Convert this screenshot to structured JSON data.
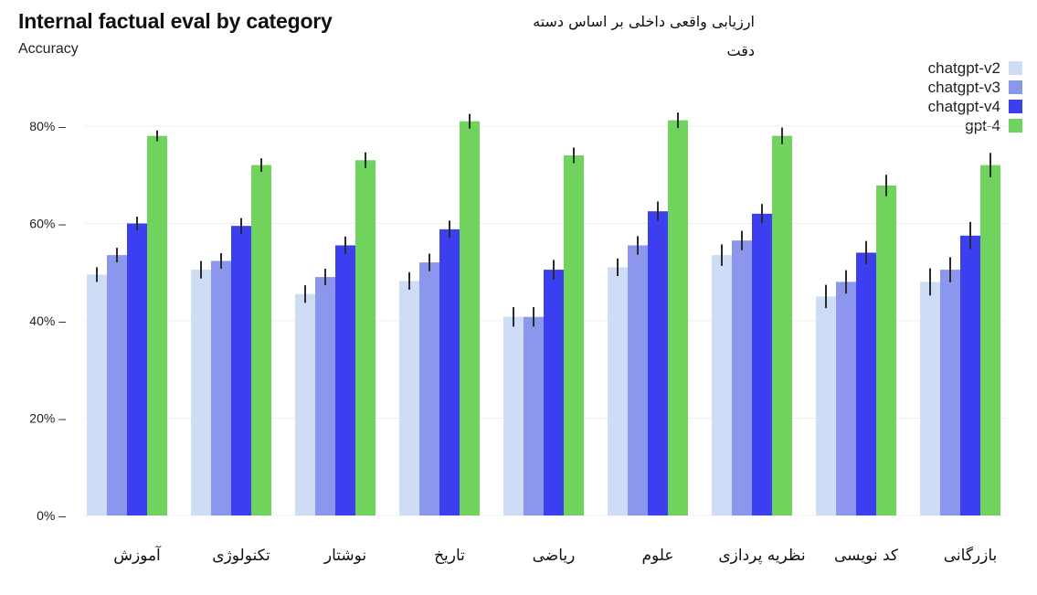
{
  "title_en": "Internal factual eval by category",
  "ylabel_en": "Accuracy",
  "title_fa": "ارزیابی واقعی داخلی بر اساس دسته",
  "ylabel_fa": "دقت",
  "colors": {
    "chatgpt-v2": "#cfdcf5",
    "chatgpt-v3": "#8a97ec",
    "chatgpt-v4": "#3c3ff0",
    "gpt-4": "#6fd35e",
    "error_bar": "#2b2b2b",
    "grid": "#efefef"
  },
  "legend": [
    {
      "name": "chatgpt-v2",
      "color": "#cfdcf5"
    },
    {
      "name": "chatgpt-v3",
      "color": "#8a97ec"
    },
    {
      "name": "chatgpt-v4",
      "color": "#3c3ff0"
    },
    {
      "name": "gpt-4",
      "color": "#6fd35e"
    }
  ],
  "chart_data": {
    "type": "bar",
    "title": "Internal factual eval by category",
    "ylabel": "Accuracy",
    "xlabel": "",
    "ylim": [
      0,
      100
    ],
    "yticks": [
      0,
      20,
      40,
      60,
      80
    ],
    "ytick_labels": [
      "0% –",
      "20% –",
      "40% –",
      "60% –",
      "80% –"
    ],
    "grid": true,
    "legend_position": "top-right",
    "categories": [
      "آموزش",
      "تکنولوژی",
      "نوشتار",
      "تاریخ",
      "ریاضی",
      "علوم",
      "نظریه پردازی",
      "کد نویسی",
      "بازرگانی"
    ],
    "series": [
      {
        "name": "chatgpt-v2",
        "values": [
          49.5,
          50.5,
          45.5,
          48.2,
          40.8,
          51.0,
          53.5,
          45.0,
          48.0
        ],
        "errors": [
          1.5,
          1.8,
          1.8,
          1.8,
          2.0,
          1.8,
          2.2,
          2.4,
          2.8
        ]
      },
      {
        "name": "chatgpt-v3",
        "values": [
          53.5,
          52.3,
          49.0,
          52.0,
          40.8,
          55.5,
          56.5,
          48.0,
          50.5
        ],
        "errors": [
          1.5,
          1.6,
          1.7,
          1.8,
          2.0,
          1.9,
          2.0,
          2.4,
          2.6
        ]
      },
      {
        "name": "chatgpt-v4",
        "values": [
          60.0,
          59.5,
          55.5,
          58.8,
          50.5,
          62.5,
          62.0,
          54.0,
          57.5
        ],
        "errors": [
          1.4,
          1.6,
          1.8,
          1.8,
          2.0,
          2.0,
          2.0,
          2.4,
          2.8
        ]
      },
      {
        "name": "gpt-4",
        "values": [
          78.0,
          72.0,
          73.0,
          81.0,
          74.0,
          81.2,
          78.0,
          67.8,
          72.0
        ],
        "errors": [
          1.1,
          1.4,
          1.6,
          1.5,
          1.6,
          1.6,
          1.7,
          2.2,
          2.5
        ]
      }
    ]
  }
}
